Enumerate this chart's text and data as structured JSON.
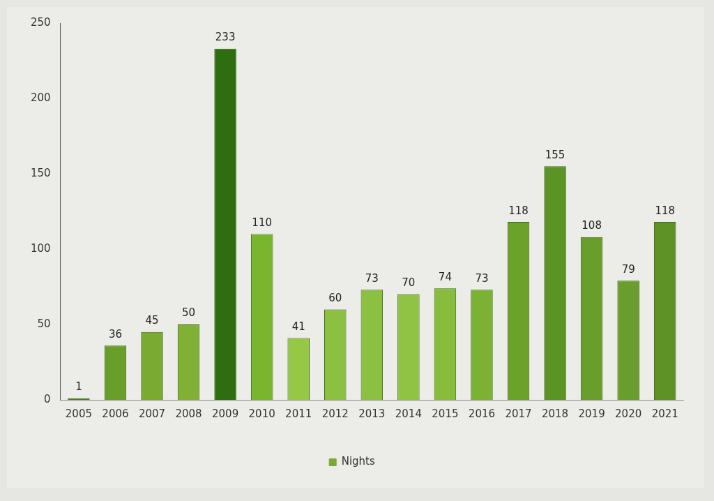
{
  "chart_data": {
    "type": "bar",
    "categories": [
      "2005",
      "2006",
      "2007",
      "2008",
      "2009",
      "2010",
      "2011",
      "2012",
      "2013",
      "2014",
      "2015",
      "2016",
      "2017",
      "2018",
      "2019",
      "2020",
      "2021"
    ],
    "series": [
      {
        "name": "Nights",
        "color": "#7aaa30",
        "values": [
          1,
          36,
          45,
          50,
          233,
          110,
          41,
          60,
          73,
          70,
          74,
          73,
          118,
          155,
          108,
          79,
          118
        ],
        "colors": [
          "#4a7a1e",
          "#6a9e2a",
          "#7aaa30",
          "#80b034",
          "#2f6e10",
          "#7ab52e",
          "#96c846",
          "#8cc040",
          "#8cc040",
          "#90c244",
          "#88bc3c",
          "#7cb234",
          "#6aa22a",
          "#5a9424",
          "#6a9e2c",
          "#6a9e2c",
          "#5e9226"
        ]
      }
    ],
    "ylim": [
      0,
      250
    ],
    "yticks": [
      0,
      50,
      100,
      150,
      200,
      250
    ],
    "grid": false,
    "legend": "bottom",
    "data_labels": true
  }
}
